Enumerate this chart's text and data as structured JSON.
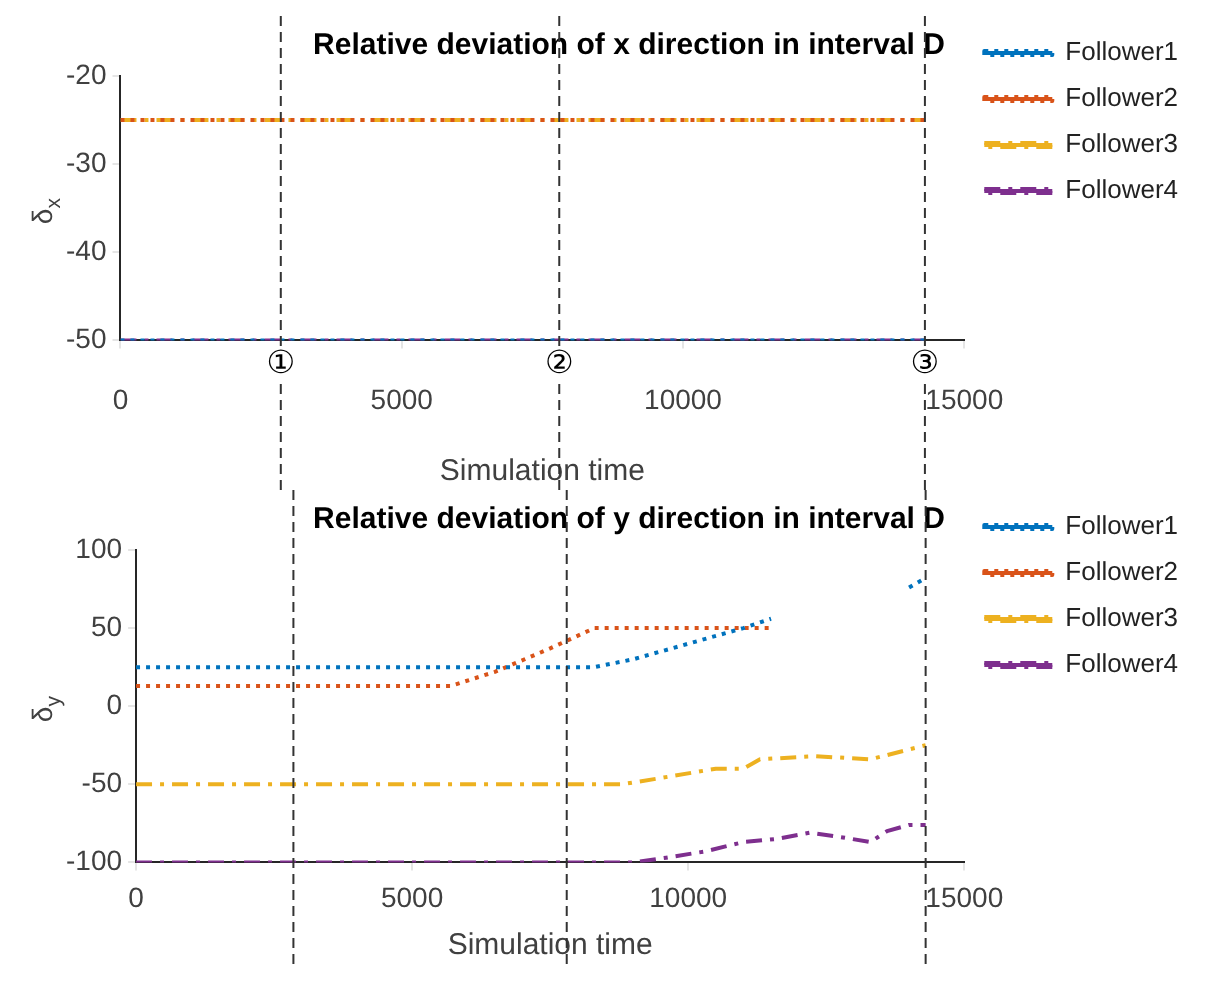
{
  "chart_data": [
    {
      "type": "line",
      "title": "Relative deviation of x direction in interval D",
      "xlabel": "Simulation time",
      "ylabel": "δ$_{x}$",
      "xlim": [
        0,
        15000
      ],
      "ylim": [
        -50,
        -20
      ],
      "xticks": [
        0,
        5000,
        10000,
        15000
      ],
      "yticks": [
        -50,
        -40,
        -30,
        -20
      ],
      "grid": false,
      "legend": "top right",
      "marker": "none",
      "series": [
        {
          "name": "Follower1",
          "color": "#0072bd",
          "line_style": "dotted",
          "x": [
            0,
            14300
          ],
          "values": [
            -50,
            -50
          ]
        },
        {
          "name": "Follower2",
          "color": "#d95319",
          "line_style": "dotted",
          "x": [
            0,
            14300
          ],
          "values": [
            -25,
            -25
          ]
        },
        {
          "name": "Follower3",
          "color": "#edb120",
          "line_style": "dashed",
          "x": [
            0,
            14300
          ],
          "values": [
            -25,
            -25
          ]
        },
        {
          "name": "Follower4",
          "color": "#7e2f8e",
          "line_style": "dashed",
          "x": [
            0,
            14300
          ],
          "values": [
            -50,
            -50
          ]
        }
      ],
      "ref_lines": [
        {
          "axis": "x",
          "value": 2850,
          "label": "①"
        },
        {
          "axis": "x",
          "value": 7800,
          "label": "②"
        },
        {
          "axis": "x",
          "value": 14300,
          "label": "③"
        }
      ]
    },
    {
      "type": "line",
      "title": "Relative deviation of y direction in interval D",
      "xlabel": "Simulation time",
      "ylabel": "δ$_{y}$",
      "xlim": [
        0,
        15000
      ],
      "ylim": [
        -100,
        100
      ],
      "xticks": [
        0,
        5000,
        10000,
        15000
      ],
      "yticks": [
        -100,
        -50,
        0,
        50,
        100
      ],
      "grid": false,
      "legend": "top right",
      "marker": "none",
      "series": [
        {
          "name": "Follower1",
          "color": "#0072bd",
          "line_style": "dotted",
          "x": [
            0,
            8300,
            9000,
            10000,
            11000,
            11500,
            12000,
            14000,
            14300
          ],
          "values": [
            25,
            25,
            30,
            40,
            50,
            56,
            null,
            76,
            82
          ]
        },
        {
          "name": "Follower2",
          "color": "#d95319",
          "line_style": "dotted",
          "x": [
            0,
            5700,
            6500,
            7500,
            8300,
            11500
          ],
          "values": [
            13,
            13,
            22,
            37,
            50,
            50
          ]
        },
        {
          "name": "Follower3",
          "color": "#edb120",
          "line_style": "dashed",
          "x": [
            0,
            8800,
            9500,
            10500,
            11000,
            11300,
            12300,
            13300,
            14300
          ],
          "values": [
            -50,
            -50,
            -46,
            -40,
            -40,
            -34,
            -32,
            -34,
            -25
          ]
        },
        {
          "name": "Follower4",
          "color": "#7e2f8e",
          "line_style": "dashed",
          "x": [
            0,
            9000,
            9600,
            10300,
            11000,
            11600,
            12200,
            12800,
            13300,
            13600,
            14000,
            14300
          ],
          "values": [
            -100,
            -100,
            -97,
            -93,
            -87,
            -85,
            -81,
            -84,
            -87,
            -80,
            -76,
            -76
          ]
        }
      ],
      "ref_lines": [
        {
          "axis": "x",
          "value": 2850
        },
        {
          "axis": "x",
          "value": 7800
        },
        {
          "axis": "x",
          "value": 14300
        }
      ]
    }
  ]
}
